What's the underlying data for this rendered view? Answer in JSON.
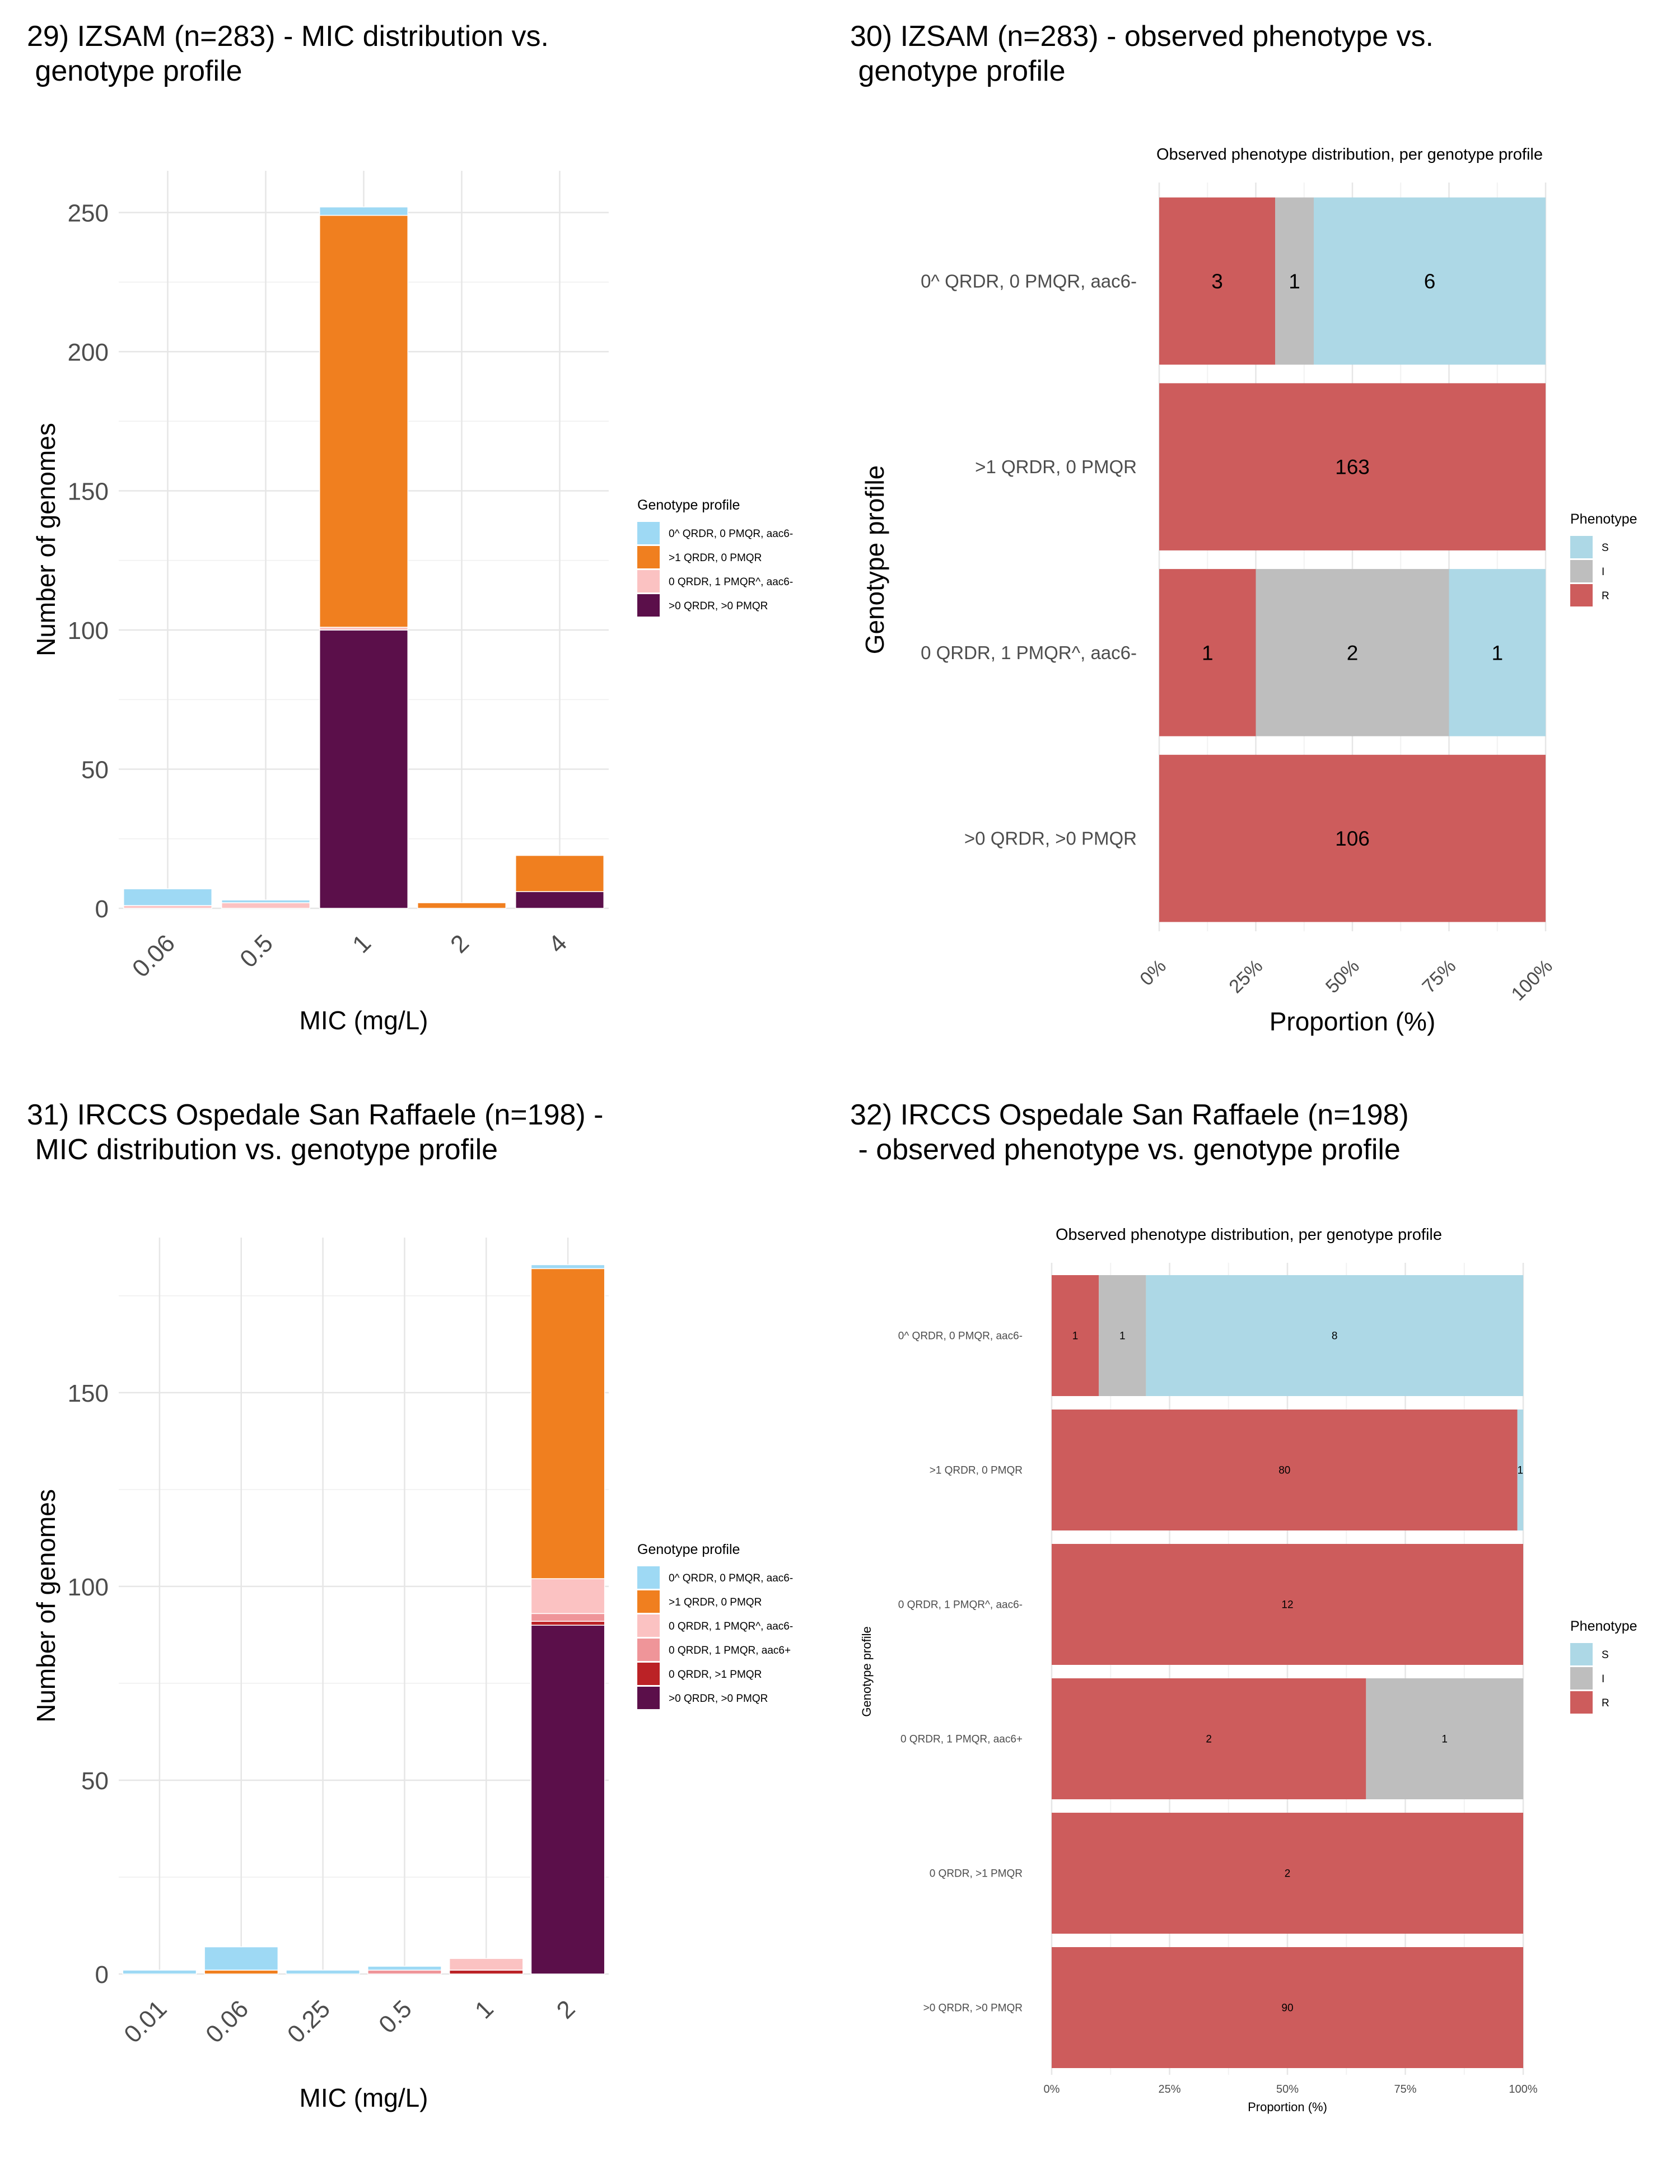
{
  "panels": [
    {
      "title_line1": "29) IZSAM (n=283) - MIC distribution vs.",
      "title_line2": " genotype profile"
    },
    {
      "title_line1": "30) IZSAM (n=283) - observed phenotype vs.",
      "title_line2": " genotype profile"
    },
    {
      "title_line1": "31) IRCCS Ospedale San Raffaele (n=198) -",
      "title_line2": " MIC distribution vs. genotype profile"
    },
    {
      "title_line1": "32) IRCCS Ospedale San Raffaele (n=198)",
      "title_line2": " - observed phenotype vs. genotype profile"
    }
  ],
  "colors": {
    "0^ QRDR, 0 PMQR, aac6-": "#9ed9f4",
    ">1 QRDR, 0 PMQR": "#f07f1f",
    "0 QRDR, 1 PMQR^, aac6-": "#fbc2c2",
    "0 QRDR, 1 PMQR, aac6+": "#ef9599",
    "0 QRDR, >1 PMQR": "#bb2226",
    ">0 QRDR, >0 PMQR": "#5b0f4a",
    "S": "#add8e6",
    "I": "#bebebe",
    "R": "#cd5c5c"
  },
  "chart_data": [
    {
      "type": "bar",
      "stacked": true,
      "xlabel": "MIC (mg/L)",
      "ylabel": "Number of genomes",
      "categories": [
        "0.06",
        "0.5",
        "1",
        "2",
        "4"
      ],
      "ylim": [
        0,
        265
      ],
      "yticks": [
        0,
        50,
        100,
        150,
        200,
        250
      ],
      "legend_title": "Genotype profile",
      "legend_position": "right",
      "series": [
        {
          "name": ">0 QRDR, >0 PMQR",
          "values": [
            0,
            0,
            100,
            0,
            6
          ]
        },
        {
          "name": "0 QRDR, 1 PMQR^, aac6-",
          "values": [
            1,
            2,
            1,
            0,
            0
          ]
        },
        {
          "name": ">1 QRDR, 0 PMQR",
          "values": [
            0,
            0,
            148,
            2,
            13
          ]
        },
        {
          "name": "0^ QRDR, 0 PMQR, aac6-",
          "values": [
            6,
            1,
            3,
            0,
            0
          ]
        }
      ],
      "legend_order": [
        "0^ QRDR, 0 PMQR, aac6-",
        ">1 QRDR, 0 PMQR",
        "0 QRDR, 1 PMQR^, aac6-",
        ">0 QRDR, >0 PMQR"
      ]
    },
    {
      "type": "bar",
      "orientation": "horizontal",
      "stacked_percent": true,
      "subtitle": "Observed phenotype distribution, per genotype profile",
      "xlabel": "Proportion (%)",
      "ylabel": "Genotype profile",
      "xticks": [
        "0%",
        "25%",
        "50%",
        "75%",
        "100%"
      ],
      "legend_title": "Phenotype",
      "legend_position": "right",
      "legend_order": [
        "S",
        "I",
        "R"
      ],
      "categories": [
        "0^ QRDR, 0 PMQR, aac6-",
        ">1 QRDR, 0 PMQR",
        "0 QRDR, 1 PMQR^, aac6-",
        ">0 QRDR, >0 PMQR"
      ],
      "series": [
        {
          "name": "R",
          "values": [
            3,
            163,
            1,
            106
          ]
        },
        {
          "name": "I",
          "values": [
            1,
            0,
            2,
            0
          ]
        },
        {
          "name": "S",
          "values": [
            6,
            0,
            1,
            0
          ]
        }
      ]
    },
    {
      "type": "bar",
      "stacked": true,
      "xlabel": "MIC (mg/L)",
      "ylabel": "Number of genomes",
      "categories": [
        "0.01",
        "0.06",
        "0.25",
        "0.5",
        "1",
        "2"
      ],
      "ylim": [
        0,
        190
      ],
      "yticks": [
        0,
        50,
        100,
        150
      ],
      "legend_title": "Genotype profile",
      "legend_position": "right",
      "series": [
        {
          "name": ">0 QRDR, >0 PMQR",
          "values": [
            0,
            0,
            0,
            0,
            0,
            90
          ]
        },
        {
          "name": "0 QRDR, >1 PMQR",
          "values": [
            0,
            0,
            0,
            0,
            1,
            1
          ]
        },
        {
          "name": "0 QRDR, 1 PMQR, aac6+",
          "values": [
            0,
            0,
            0,
            1,
            0,
            2
          ]
        },
        {
          "name": "0 QRDR, 1 PMQR^, aac6-",
          "values": [
            0,
            0,
            0,
            0,
            3,
            9
          ]
        },
        {
          "name": ">1 QRDR, 0 PMQR",
          "values": [
            0,
            1,
            0,
            0,
            0,
            80
          ]
        },
        {
          "name": "0^ QRDR, 0 PMQR, aac6-",
          "values": [
            1,
            6,
            1,
            1,
            0,
            1
          ]
        }
      ],
      "legend_order": [
        "0^ QRDR, 0 PMQR, aac6-",
        ">1 QRDR, 0 PMQR",
        "0 QRDR, 1 PMQR^, aac6-",
        "0 QRDR, 1 PMQR, aac6+",
        "0 QRDR, >1 PMQR",
        ">0 QRDR, >0 PMQR"
      ]
    },
    {
      "type": "bar",
      "orientation": "horizontal",
      "stacked_percent": true,
      "subtitle": "Observed phenotype distribution, per genotype profile",
      "xlabel": "Proportion (%)",
      "ylabel": "Genotype profile",
      "xticks": [
        "0%",
        "25%",
        "50%",
        "75%",
        "100%"
      ],
      "legend_title": "Phenotype",
      "legend_position": "right",
      "legend_order": [
        "S",
        "I",
        "R"
      ],
      "categories": [
        "0^ QRDR, 0 PMQR, aac6-",
        ">1 QRDR, 0 PMQR",
        "0 QRDR, 1 PMQR^, aac6-",
        "0 QRDR, 1 PMQR, aac6+",
        "0 QRDR, >1 PMQR",
        ">0 QRDR, >0 PMQR"
      ],
      "series": [
        {
          "name": "R",
          "values": [
            1,
            80,
            12,
            2,
            2,
            90
          ]
        },
        {
          "name": "I",
          "values": [
            1,
            0,
            0,
            1,
            0,
            0
          ]
        },
        {
          "name": "S",
          "values": [
            8,
            1,
            0,
            0,
            0,
            0
          ]
        }
      ]
    }
  ]
}
